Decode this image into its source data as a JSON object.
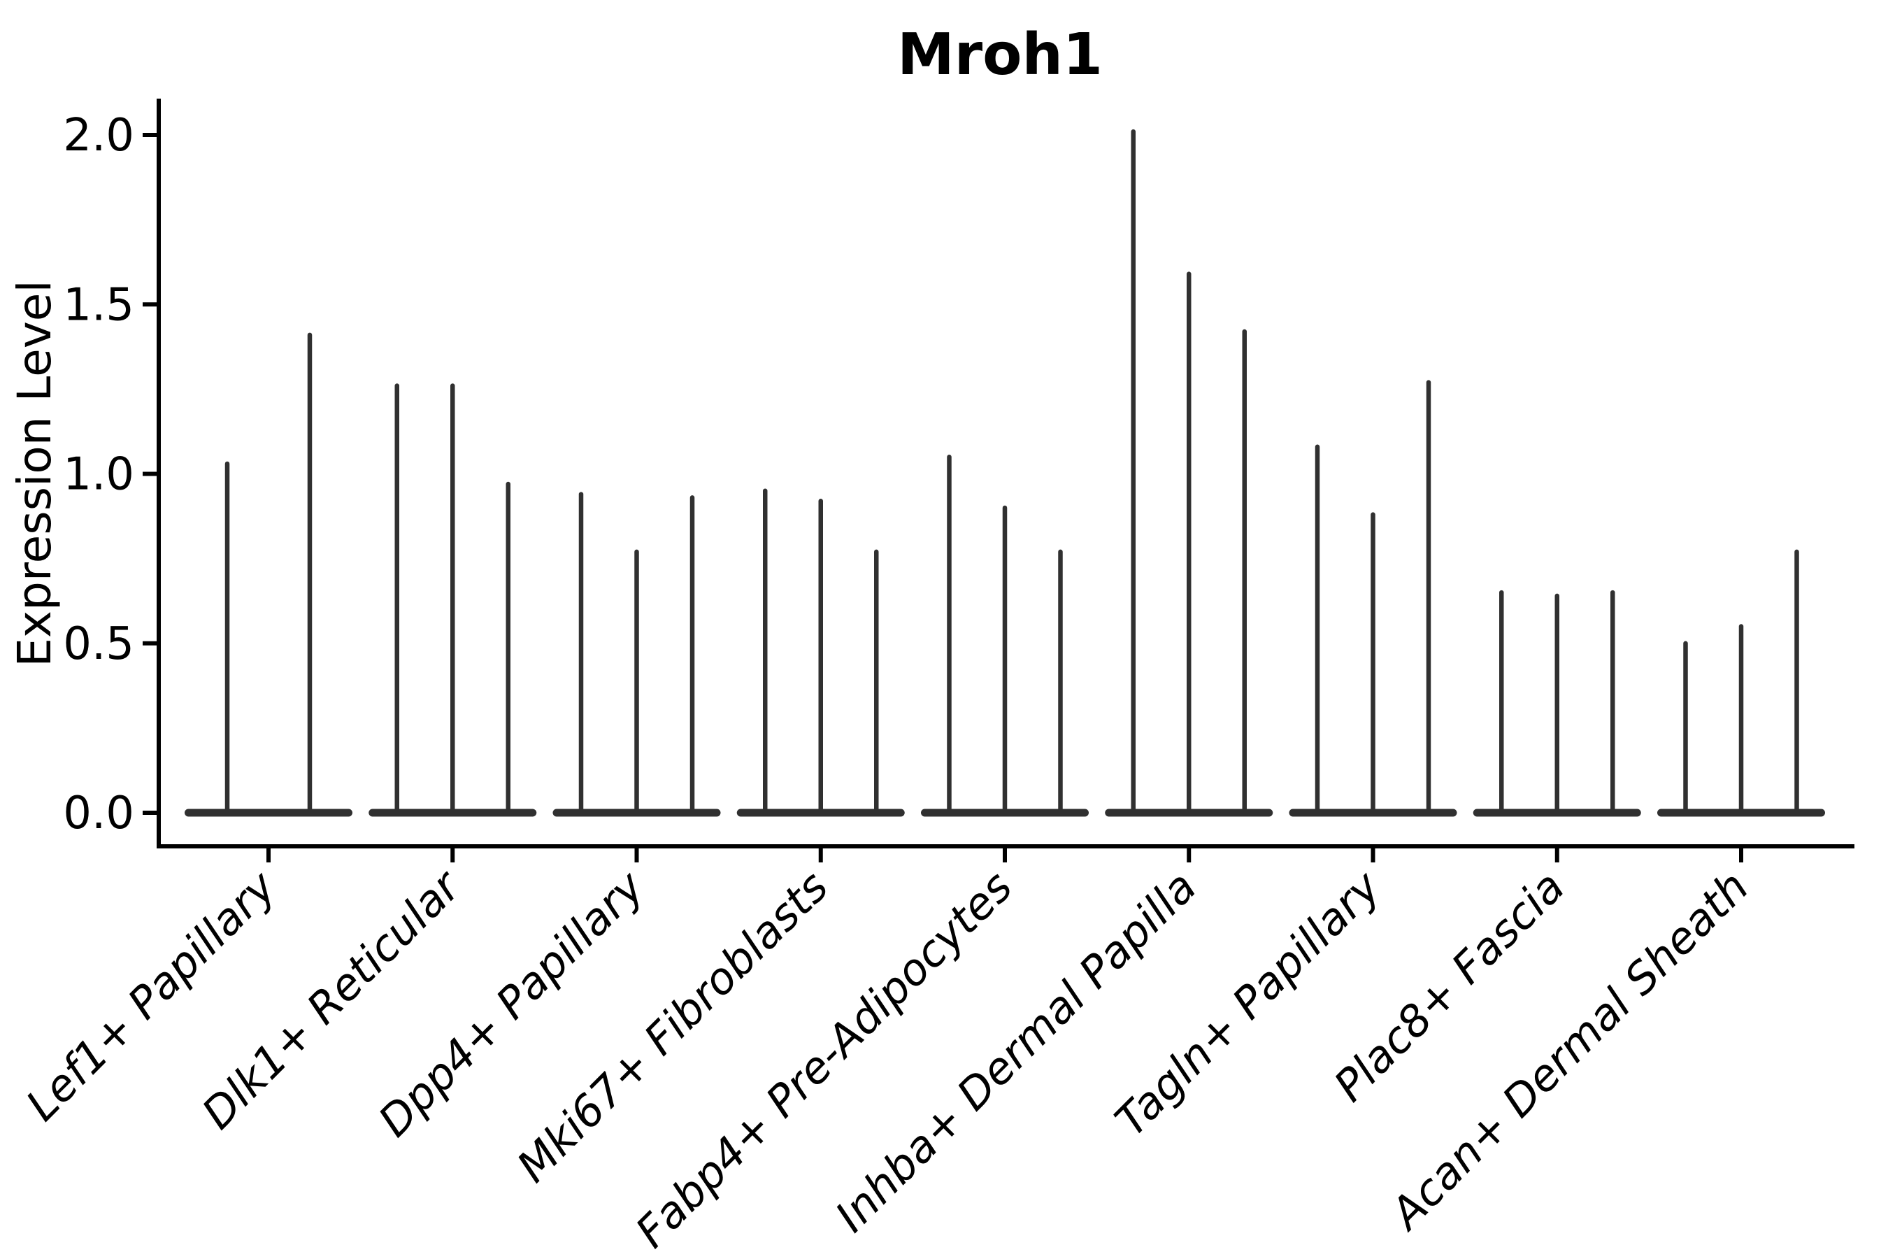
{
  "chart_data": {
    "type": "violin",
    "title": "Mroh1",
    "xlabel": "",
    "ylabel": "Expression Level",
    "yticks": [
      "0.0",
      "0.5",
      "1.0",
      "1.5",
      "2.0"
    ],
    "ylim": [
      -0.1,
      2.11
    ],
    "grid": false,
    "legend": "none",
    "xtick_rotation": 45,
    "description": "Violin plot of Mroh1 expression; each category holds 2-3 very thin spike-like violins (flat base at 0 with a narrow spike to the max value).",
    "groups": [
      {
        "label": "Lef1+ Papillary",
        "violin_maxima": [
          1.03,
          1.41
        ]
      },
      {
        "label": "Dlk1+ Reticular",
        "violin_maxima": [
          1.26,
          1.26,
          0.97
        ]
      },
      {
        "label": "Dpp4+ Papillary",
        "violin_maxima": [
          0.94,
          0.77,
          0.93
        ]
      },
      {
        "label": "Mki67+ Fibroblasts",
        "violin_maxima": [
          0.95,
          0.92,
          0.77
        ]
      },
      {
        "label": "Fabp4+ Pre-Adipocytes",
        "violin_maxima": [
          1.05,
          0.9,
          0.77
        ]
      },
      {
        "label": "Inhba+ Dermal Papilla",
        "violin_maxima": [
          2.01,
          1.59,
          1.42
        ]
      },
      {
        "label": "Tagln+ Papillary",
        "violin_maxima": [
          1.08,
          0.88,
          1.27
        ]
      },
      {
        "label": "Plac8+ Fascia",
        "violin_maxima": [
          0.65,
          0.64,
          0.65
        ]
      },
      {
        "label": "Acan+ Dermal Sheath",
        "violin_maxima": [
          0.5,
          0.55,
          0.77
        ]
      }
    ],
    "colors": {
      "violin": "#303030",
      "axis": "#000000",
      "text": "#000000",
      "background": "#ffffff"
    }
  }
}
